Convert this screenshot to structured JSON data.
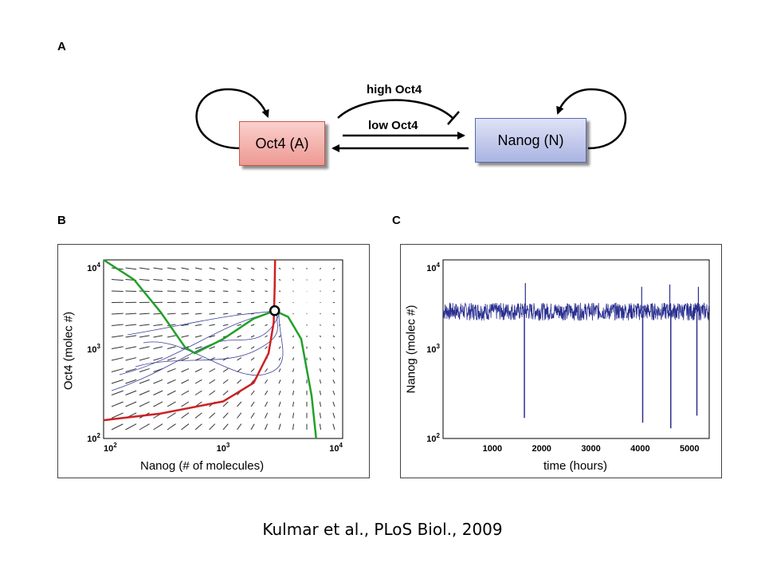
{
  "panel_a": {
    "letter": "A",
    "oct4_label": "Oct4 (A)",
    "nanog_label": "Nanog (N)",
    "high_label": "high Oct4",
    "low_label": "low Oct4",
    "colors": {
      "oct4_fill": "#f4b3ad",
      "nanog_fill": "#c3c9ec"
    }
  },
  "panel_b": {
    "letter": "B",
    "xlabel": "Nanog (# of molecules)",
    "ylabel": "Oct4 (molec #)",
    "x_ticks": [
      {
        "base": "10",
        "exp": "2"
      },
      {
        "base": "10",
        "exp": "3"
      },
      {
        "base": "10",
        "exp": "4"
      }
    ],
    "y_ticks": [
      {
        "base": "10",
        "exp": "2"
      },
      {
        "base": "10",
        "exp": "3"
      },
      {
        "base": "10",
        "exp": "4"
      }
    ]
  },
  "panel_c": {
    "letter": "C",
    "xlabel": "time (hours)",
    "ylabel": "Nanog (molec #)",
    "x_ticks": [
      "1000",
      "2000",
      "3000",
      "4000",
      "5000"
    ],
    "y_ticks": [
      {
        "base": "10",
        "exp": "2"
      },
      {
        "base": "10",
        "exp": "3"
      },
      {
        "base": "10",
        "exp": "4"
      }
    ]
  },
  "chart_data": [
    {
      "type": "line",
      "panel": "B",
      "xlabel": "Nanog (# of molecules)",
      "ylabel": "Oct4 (molec #)",
      "xlim": [
        100,
        10000
      ],
      "ylim": [
        100,
        10000
      ],
      "xscale": "log",
      "yscale": "log",
      "series": [
        {
          "color": "#cc2222",
          "x": [
            100,
            300,
            1000,
            1800,
            2400,
            2650,
            2700,
            2720
          ],
          "y": [
            160,
            190,
            260,
            420,
            900,
            2000,
            5000,
            10000
          ]
        },
        {
          "color": "#22a02a",
          "x": [
            100,
            180,
            300,
            480,
            580,
            1000,
            1800,
            2700,
            3500,
            4500,
            5500,
            6000
          ],
          "y": [
            10000,
            6000,
            2600,
            1050,
            900,
            1300,
            2200,
            2700,
            2300,
            1300,
            300,
            100
          ]
        }
      ],
      "markers": [
        {
          "x": 2700,
          "y": 2700,
          "shape": "open-circle"
        }
      ]
    },
    {
      "type": "line",
      "panel": "C",
      "xlabel": "time (hours)",
      "ylabel": "Nanog (molec #)",
      "xlim": [
        0,
        5400
      ],
      "ylim": [
        100,
        10000
      ],
      "yscale": "log",
      "series": [
        {
          "color": "#2a2f8f",
          "baseline": 2700,
          "dips": [
            {
              "x": 1650,
              "y": 170
            },
            {
              "x": 4050,
              "y": 150
            },
            {
              "x": 4620,
              "y": 130
            },
            {
              "x": 5150,
              "y": 180
            }
          ],
          "peaks": [
            {
              "x": 1670,
              "y": 5500
            },
            {
              "x": 4030,
              "y": 5000
            },
            {
              "x": 4600,
              "y": 5300
            },
            {
              "x": 5180,
              "y": 5000
            }
          ]
        }
      ]
    }
  ],
  "citation": "Kulmar et al., PLoS Biol., 2009"
}
